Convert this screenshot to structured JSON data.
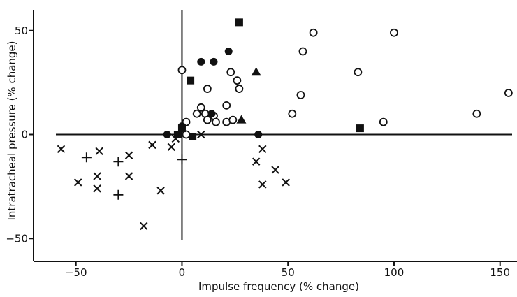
{
  "chart_data": {
    "type": "scatter",
    "title": "",
    "xlabel": "Impulse frequency (% change)",
    "ylabel": "Intratracheal pressure (% change)",
    "xlim": [
      -70,
      158
    ],
    "ylim": [
      -61,
      60
    ],
    "x_ticks": [
      -50,
      0,
      50,
      100,
      150
    ],
    "x_tick_labels": [
      "−50",
      "0",
      "50",
      "100",
      "150"
    ],
    "y_ticks": [
      -50,
      0,
      50
    ],
    "y_tick_labels": [
      "−50",
      "0",
      "50"
    ],
    "zero_lines": true,
    "grid": false,
    "series": [
      {
        "marker": "open-circle",
        "points": [
          [
            0,
            31
          ],
          [
            2,
            6
          ],
          [
            2,
            0
          ],
          [
            7,
            10
          ],
          [
            9,
            13
          ],
          [
            11,
            10
          ],
          [
            12,
            22
          ],
          [
            12,
            7
          ],
          [
            15,
            9
          ],
          [
            16,
            6
          ],
          [
            21,
            14
          ],
          [
            21,
            6
          ],
          [
            23,
            30
          ],
          [
            24,
            7
          ],
          [
            26,
            26
          ],
          [
            27,
            22
          ],
          [
            52,
            10
          ],
          [
            56,
            19
          ],
          [
            57,
            40
          ],
          [
            62,
            49
          ],
          [
            83,
            30
          ],
          [
            95,
            6
          ],
          [
            100,
            49
          ],
          [
            139,
            10
          ],
          [
            154,
            20
          ]
        ]
      },
      {
        "marker": "filled-circle",
        "points": [
          [
            -7,
            0
          ],
          [
            0,
            4
          ],
          [
            9,
            35
          ],
          [
            14,
            10
          ],
          [
            15,
            35
          ],
          [
            22,
            40
          ],
          [
            36,
            0
          ]
        ]
      },
      {
        "marker": "filled-square",
        "points": [
          [
            -2,
            0
          ],
          [
            0,
            3
          ],
          [
            4,
            26
          ],
          [
            5,
            -1
          ],
          [
            27,
            54
          ],
          [
            84,
            3
          ]
        ]
      },
      {
        "marker": "filled-triangle",
        "points": [
          [
            28,
            7
          ],
          [
            35,
            30
          ]
        ]
      },
      {
        "marker": "cross-x",
        "points": [
          [
            -57,
            -7
          ],
          [
            -49,
            -23
          ],
          [
            -39,
            -8
          ],
          [
            -40,
            -20
          ],
          [
            -40,
            -26
          ],
          [
            -25,
            -10
          ],
          [
            -25,
            -20
          ],
          [
            -14,
            -5
          ],
          [
            -10,
            -27
          ],
          [
            -18,
            -44
          ],
          [
            -5,
            -6
          ],
          [
            -3,
            -2
          ],
          [
            9,
            0
          ],
          [
            35,
            -13
          ],
          [
            38,
            -7
          ],
          [
            38,
            -24
          ],
          [
            44,
            -17
          ],
          [
            49,
            -23
          ]
        ]
      },
      {
        "marker": "plus",
        "points": [
          [
            -45,
            -11
          ],
          [
            -30,
            -13
          ],
          [
            -30,
            -29
          ],
          [
            0,
            -12
          ]
        ]
      }
    ]
  }
}
